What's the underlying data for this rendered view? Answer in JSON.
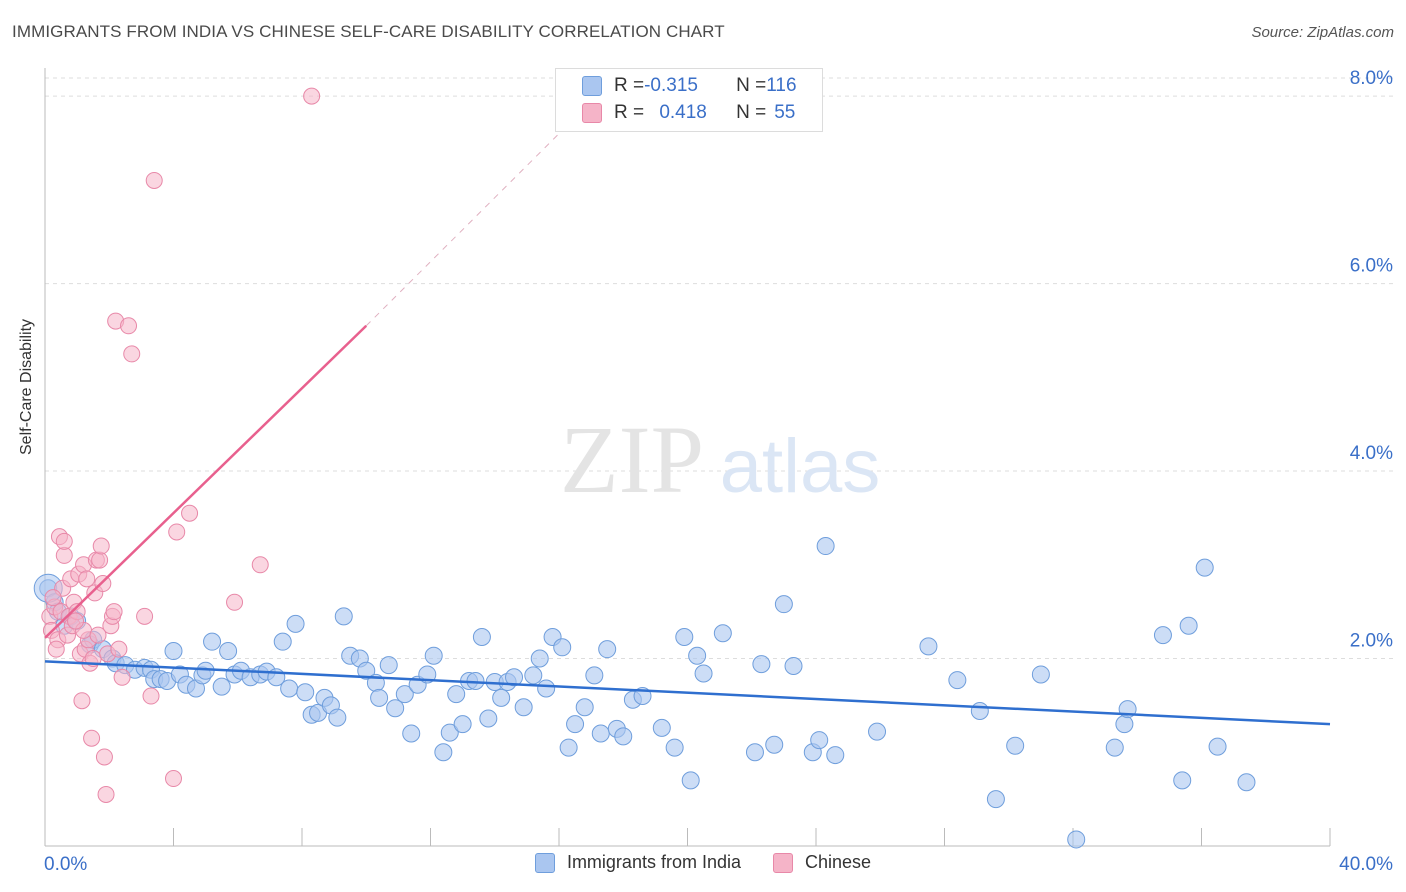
{
  "header": {
    "title": "IMMIGRANTS FROM INDIA VS CHINESE SELF-CARE DISABILITY CORRELATION CHART",
    "source": "Source: ZipAtlas.com"
  },
  "watermark": {
    "zip": "ZIP",
    "atlas": "atlas"
  },
  "legend": {
    "rows": [
      {
        "r_label": "R = ",
        "r_value": "-0.315",
        "n_label": "N = ",
        "n_value": "116",
        "color": "#aac6f0"
      },
      {
        "r_label": "R = ",
        "r_value": "0.418",
        "n_label": "N = ",
        "n_value": "55",
        "color": "#f5b4c8"
      }
    ]
  },
  "colors": {
    "india_fill": "#aac6f0",
    "india_stroke": "#6f9edc",
    "india_line": "#2f6fcf",
    "chinese_fill": "#f5b4c8",
    "chinese_stroke": "#e888a8",
    "chinese_line": "#e8608e",
    "grid": "#dddddd",
    "axis_label": "#3a6fc8"
  },
  "chart_data": {
    "type": "scatter",
    "title": "IMMIGRANTS FROM INDIA VS CHINESE SELF-CARE DISABILITY CORRELATION CHART",
    "xlabel": "",
    "ylabel": "Self-Care Disability",
    "xlim": [
      0,
      40
    ],
    "ylim": [
      0,
      8.3
    ],
    "x_ticks": [
      "0.0%",
      "40.0%"
    ],
    "y_ticks": [
      {
        "value": 2,
        "label": "2.0%"
      },
      {
        "value": 4,
        "label": "4.0%"
      },
      {
        "value": 6,
        "label": "6.0%"
      },
      {
        "value": 8,
        "label": "8.0%"
      }
    ],
    "grid": true,
    "legend_position": "bottom",
    "series": [
      {
        "name": "Immigrants from India",
        "trend": {
          "x0": 0,
          "y0": 1.97,
          "x1": 40,
          "y1": 1.3
        },
        "points": [
          [
            0.1,
            2.75
          ],
          [
            0.3,
            2.6
          ],
          [
            0.4,
            2.5
          ],
          [
            0.6,
            2.35
          ],
          [
            0.8,
            2.45
          ],
          [
            1.0,
            2.4
          ],
          [
            1.4,
            2.15
          ],
          [
            1.5,
            2.2
          ],
          [
            1.8,
            2.1
          ],
          [
            2.1,
            2.0
          ],
          [
            2.2,
            1.95
          ],
          [
            2.5,
            1.93
          ],
          [
            2.8,
            1.88
          ],
          [
            3.1,
            1.9
          ],
          [
            3.3,
            1.88
          ],
          [
            3.4,
            1.78
          ],
          [
            3.6,
            1.78
          ],
          [
            3.8,
            1.76
          ],
          [
            4.0,
            2.08
          ],
          [
            4.2,
            1.83
          ],
          [
            4.4,
            1.72
          ],
          [
            4.7,
            1.68
          ],
          [
            4.9,
            1.82
          ],
          [
            5.0,
            1.87
          ],
          [
            5.2,
            2.18
          ],
          [
            5.5,
            1.7
          ],
          [
            5.7,
            2.08
          ],
          [
            5.9,
            1.83
          ],
          [
            6.1,
            1.87
          ],
          [
            6.4,
            1.8
          ],
          [
            6.7,
            1.83
          ],
          [
            6.9,
            1.86
          ],
          [
            7.2,
            1.8
          ],
          [
            7.4,
            2.18
          ],
          [
            7.6,
            1.68
          ],
          [
            7.8,
            2.37
          ],
          [
            8.1,
            1.64
          ],
          [
            8.3,
            1.4
          ],
          [
            8.5,
            1.42
          ],
          [
            8.7,
            1.58
          ],
          [
            8.9,
            1.5
          ],
          [
            9.1,
            1.37
          ],
          [
            9.3,
            2.45
          ],
          [
            9.5,
            2.03
          ],
          [
            9.8,
            2.0
          ],
          [
            10.0,
            1.87
          ],
          [
            10.3,
            1.74
          ],
          [
            10.4,
            1.58
          ],
          [
            10.7,
            1.93
          ],
          [
            10.9,
            1.47
          ],
          [
            11.2,
            1.62
          ],
          [
            11.4,
            1.2
          ],
          [
            11.6,
            1.72
          ],
          [
            11.9,
            1.83
          ],
          [
            12.1,
            2.03
          ],
          [
            12.4,
            1.0
          ],
          [
            12.6,
            1.21
          ],
          [
            12.8,
            1.62
          ],
          [
            13.0,
            1.3
          ],
          [
            13.2,
            1.76
          ],
          [
            13.4,
            1.76
          ],
          [
            13.6,
            2.23
          ],
          [
            13.8,
            1.36
          ],
          [
            14.0,
            1.75
          ],
          [
            14.2,
            1.58
          ],
          [
            14.4,
            1.75
          ],
          [
            14.6,
            1.8
          ],
          [
            14.9,
            1.48
          ],
          [
            15.2,
            1.82
          ],
          [
            15.4,
            2.0
          ],
          [
            15.6,
            1.68
          ],
          [
            15.8,
            2.23
          ],
          [
            16.1,
            2.12
          ],
          [
            16.3,
            1.05
          ],
          [
            16.5,
            1.3
          ],
          [
            16.8,
            1.48
          ],
          [
            17.1,
            1.82
          ],
          [
            17.3,
            1.2
          ],
          [
            17.5,
            2.1
          ],
          [
            17.8,
            1.25
          ],
          [
            18.0,
            1.17
          ],
          [
            18.3,
            1.56
          ],
          [
            18.6,
            1.6
          ],
          [
            19.2,
            1.26
          ],
          [
            19.6,
            1.05
          ],
          [
            19.9,
            2.23
          ],
          [
            20.3,
            2.03
          ],
          [
            20.5,
            1.84
          ],
          [
            21.1,
            2.27
          ],
          [
            22.1,
            1.0
          ],
          [
            22.3,
            1.94
          ],
          [
            22.7,
            1.08
          ],
          [
            23.0,
            2.58
          ],
          [
            23.3,
            1.92
          ],
          [
            23.9,
            1.0
          ],
          [
            24.1,
            1.13
          ],
          [
            24.3,
            3.2
          ],
          [
            24.6,
            0.97
          ],
          [
            25.9,
            1.22
          ],
          [
            27.5,
            2.13
          ],
          [
            28.4,
            1.77
          ],
          [
            29.1,
            1.44
          ],
          [
            29.6,
            0.5
          ],
          [
            30.2,
            1.07
          ],
          [
            31.0,
            1.83
          ],
          [
            32.1,
            0.07
          ],
          [
            33.3,
            1.05
          ],
          [
            33.6,
            1.3
          ],
          [
            33.7,
            1.46
          ],
          [
            34.8,
            2.25
          ],
          [
            35.4,
            0.7
          ],
          [
            35.6,
            2.35
          ],
          [
            36.1,
            2.97
          ],
          [
            36.5,
            1.06
          ],
          [
            37.4,
            0.68
          ],
          [
            20.1,
            0.7
          ]
        ]
      },
      {
        "name": "Chinese",
        "trend": {
          "x0": 0,
          "y0": 2.22,
          "x1": 10,
          "y1": 5.55,
          "dash_to_x": 16,
          "dash_to_y": 7.6
        },
        "points": [
          [
            0.15,
            2.45
          ],
          [
            0.2,
            2.3
          ],
          [
            0.3,
            2.55
          ],
          [
            0.4,
            2.2
          ],
          [
            0.45,
            3.3
          ],
          [
            0.5,
            2.5
          ],
          [
            0.55,
            2.75
          ],
          [
            0.6,
            3.1
          ],
          [
            0.6,
            3.25
          ],
          [
            0.7,
            2.25
          ],
          [
            0.75,
            2.45
          ],
          [
            0.8,
            2.85
          ],
          [
            0.85,
            2.35
          ],
          [
            0.9,
            2.6
          ],
          [
            1.0,
            2.5
          ],
          [
            1.05,
            2.9
          ],
          [
            1.1,
            2.05
          ],
          [
            1.15,
            1.55
          ],
          [
            1.2,
            3.0
          ],
          [
            1.25,
            2.1
          ],
          [
            1.3,
            2.85
          ],
          [
            1.35,
            2.2
          ],
          [
            1.4,
            1.95
          ],
          [
            1.45,
            1.15
          ],
          [
            1.5,
            2.0
          ],
          [
            1.55,
            2.7
          ],
          [
            1.6,
            3.05
          ],
          [
            1.7,
            3.05
          ],
          [
            1.75,
            3.2
          ],
          [
            1.8,
            2.8
          ],
          [
            1.85,
            0.95
          ],
          [
            1.9,
            0.55
          ],
          [
            1.95,
            2.05
          ],
          [
            2.05,
            2.35
          ],
          [
            2.1,
            2.45
          ],
          [
            2.15,
            2.5
          ],
          [
            2.3,
            2.1
          ],
          [
            2.2,
            5.6
          ],
          [
            2.6,
            5.55
          ],
          [
            2.7,
            5.25
          ],
          [
            3.1,
            2.45
          ],
          [
            3.3,
            1.6
          ],
          [
            3.4,
            7.1
          ],
          [
            4.1,
            3.35
          ],
          [
            4.5,
            3.55
          ],
          [
            4.0,
            0.72
          ],
          [
            5.9,
            2.6
          ],
          [
            6.7,
            3.0
          ],
          [
            8.3,
            8.0
          ],
          [
            1.2,
            2.3
          ],
          [
            0.35,
            2.1
          ],
          [
            0.95,
            2.4
          ],
          [
            1.65,
            2.25
          ],
          [
            2.4,
            1.8
          ],
          [
            0.25,
            2.65
          ]
        ]
      }
    ]
  }
}
